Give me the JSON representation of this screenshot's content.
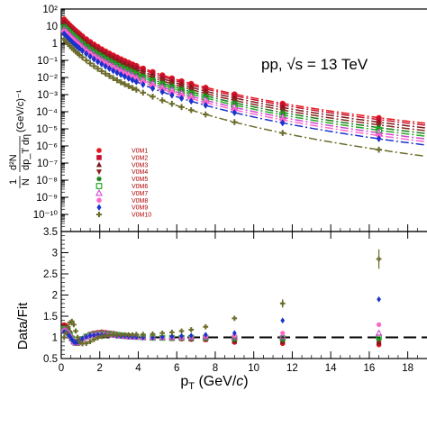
{
  "chart_data": [
    {
      "panel": "spectrum",
      "type": "scatter",
      "title": "pp, √s = 13 TeV",
      "ylabel": "1/N d²N/dp_T dη (GeV/c)⁻¹",
      "ylabel_parts": {
        "frac_num_top": "1",
        "frac_den_top": "N",
        "frac_num": "d²N",
        "frac_den": "dp_T dη",
        "unit": "(GeV/c)⁻¹"
      },
      "yscale": "log",
      "ylim": [
        1e-11,
        100
      ],
      "xlim": [
        0,
        19
      ],
      "ytick_labels": [
        "10²",
        "10",
        "1",
        "10⁻¹",
        "10⁻²",
        "10⁻³",
        "10⁻⁴",
        "10⁻⁵",
        "10⁻⁶",
        "10⁻⁷",
        "10⁻⁸",
        "10⁻⁹",
        "10⁻¹⁰"
      ],
      "ytick_values": [
        100,
        10,
        1,
        0.1,
        0.01,
        0.001,
        0.0001,
        1e-05,
        1e-06,
        1e-07,
        1e-08,
        1e-09,
        1e-10
      ],
      "legend_position": "lower-left",
      "x": [
        0.15,
        0.25,
        0.35,
        0.45,
        0.55,
        0.65,
        0.75,
        0.85,
        0.95,
        1.1,
        1.3,
        1.5,
        1.7,
        1.9,
        2.1,
        2.3,
        2.5,
        2.7,
        2.9,
        3.1,
        3.3,
        3.5,
        3.7,
        3.9,
        4.25,
        4.75,
        5.25,
        5.75,
        6.25,
        6.75,
        7.5,
        9.0,
        11.5,
        16.5
      ],
      "series": [
        {
          "name": "V0M1",
          "color": "#e8171b",
          "marker": "circle",
          "A": 40,
          "B": 0.32,
          "n": 6.1,
          "fit": "dashdot"
        },
        {
          "name": "V0M2",
          "color": "#c8102e",
          "marker": "square",
          "A": 30,
          "B": 0.33,
          "n": 6.2,
          "fit": "dashdot"
        },
        {
          "name": "V0M3",
          "color": "#7a1a1a",
          "marker": "triangle-up",
          "A": 24,
          "B": 0.33,
          "n": 6.3,
          "fit": "dashdot"
        },
        {
          "name": "V0M4",
          "color": "#8b2520",
          "marker": "triangle-down",
          "A": 19,
          "B": 0.33,
          "n": 6.4,
          "fit": "dashdot"
        },
        {
          "name": "V0M5",
          "color": "#1a7a1a",
          "marker": "star",
          "A": 15,
          "B": 0.33,
          "n": 6.5,
          "fit": "dashdot"
        },
        {
          "name": "V0M6",
          "color": "#22aa22",
          "marker": "square-open",
          "A": 12,
          "B": 0.33,
          "n": 6.6,
          "fit": "dashdot"
        },
        {
          "name": "V0M7",
          "color": "#d147d1",
          "marker": "triangle-open",
          "A": 9.5,
          "B": 0.33,
          "n": 6.7,
          "fit": "dashdot"
        },
        {
          "name": "V0M8",
          "color": "#ff66cc",
          "marker": "circle",
          "A": 7.5,
          "B": 0.33,
          "n": 6.8,
          "fit": "dashdot"
        },
        {
          "name": "V0M9",
          "color": "#1a33cc",
          "marker": "diamond",
          "A": 5.5,
          "B": 0.33,
          "n": 6.9,
          "fit": "dashdot"
        },
        {
          "name": "V0M10",
          "color": "#6b6b2a",
          "marker": "cross",
          "A": 2.5,
          "B": 0.32,
          "n": 7.3,
          "fit": "dashdot"
        }
      ]
    },
    {
      "panel": "ratio",
      "type": "scatter",
      "xlabel": "p_T (GeV/c)",
      "xlabel_parts": {
        "main": "p",
        "sub": "T",
        "unit_open": " (GeV/",
        "unit_c": "c",
        "unit_close": ")"
      },
      "ylabel": "Data/Fit",
      "ylim": [
        0.5,
        3.5
      ],
      "xlim": [
        0,
        19
      ],
      "ytick_labels": [
        "0.5",
        "1",
        "1.5",
        "2",
        "2.5",
        "3",
        "3.5"
      ],
      "ytick_values": [
        0.5,
        1,
        1.5,
        2,
        2.5,
        3,
        3.5
      ],
      "xtick_labels": [
        "0",
        "2",
        "4",
        "6",
        "8",
        "10",
        "12",
        "14",
        "16",
        "18"
      ],
      "xtick_values": [
        0,
        2,
        4,
        6,
        8,
        10,
        12,
        14,
        16,
        18
      ],
      "reference_line": 1,
      "x": [
        0.15,
        0.25,
        0.35,
        0.45,
        0.55,
        0.65,
        0.75,
        0.85,
        0.95,
        1.1,
        1.3,
        1.5,
        1.7,
        1.9,
        2.1,
        2.3,
        2.5,
        2.7,
        2.9,
        3.1,
        3.3,
        3.5,
        3.7,
        3.9,
        4.25,
        4.75,
        5.25,
        5.75,
        6.25,
        6.75,
        7.5,
        9.0,
        11.5,
        16.5
      ],
      "series": [
        {
          "name": "V0M1",
          "values": [
            1.3,
            1.28,
            1.22,
            1.12,
            1.0,
            0.9,
            0.86,
            0.85,
            0.88,
            0.94,
            1.02,
            1.08,
            1.1,
            1.12,
            1.13,
            1.12,
            1.11,
            1.1,
            1.08,
            1.06,
            1.05,
            1.04,
            1.03,
            1.02,
            1.0,
            0.99,
            0.98,
            0.97,
            0.96,
            0.95,
            0.94,
            0.88,
            0.85,
            0.82
          ]
        },
        {
          "name": "V0M2",
          "values": [
            1.28,
            1.26,
            1.2,
            1.1,
            0.99,
            0.9,
            0.86,
            0.86,
            0.89,
            0.95,
            1.02,
            1.07,
            1.1,
            1.11,
            1.12,
            1.11,
            1.1,
            1.09,
            1.07,
            1.06,
            1.05,
            1.04,
            1.03,
            1.02,
            1.0,
            0.99,
            0.98,
            0.97,
            0.97,
            0.96,
            0.95,
            0.9,
            0.88,
            0.86
          ]
        },
        {
          "name": "V0M3",
          "values": [
            1.26,
            1.24,
            1.18,
            1.09,
            0.98,
            0.9,
            0.86,
            0.86,
            0.89,
            0.95,
            1.02,
            1.07,
            1.09,
            1.1,
            1.11,
            1.1,
            1.09,
            1.08,
            1.07,
            1.05,
            1.04,
            1.03,
            1.02,
            1.02,
            1.0,
            0.99,
            0.98,
            0.97,
            0.97,
            0.96,
            0.96,
            0.92,
            0.9,
            0.88
          ]
        },
        {
          "name": "V0M4",
          "values": [
            1.24,
            1.22,
            1.17,
            1.08,
            0.98,
            0.9,
            0.86,
            0.86,
            0.9,
            0.95,
            1.02,
            1.06,
            1.08,
            1.1,
            1.1,
            1.1,
            1.09,
            1.08,
            1.06,
            1.05,
            1.04,
            1.03,
            1.02,
            1.01,
            1.0,
            0.99,
            0.98,
            0.98,
            0.97,
            0.97,
            0.97,
            0.94,
            0.92,
            0.92
          ]
        },
        {
          "name": "V0M5",
          "values": [
            1.22,
            1.2,
            1.15,
            1.07,
            0.97,
            0.9,
            0.86,
            0.87,
            0.9,
            0.96,
            1.02,
            1.06,
            1.08,
            1.09,
            1.09,
            1.09,
            1.08,
            1.07,
            1.06,
            1.05,
            1.04,
            1.03,
            1.02,
            1.01,
            1.0,
            0.99,
            0.99,
            0.98,
            0.98,
            0.98,
            0.98,
            0.96,
            0.95,
            0.96
          ]
        },
        {
          "name": "V0M6",
          "values": [
            1.2,
            1.18,
            1.14,
            1.06,
            0.97,
            0.9,
            0.87,
            0.87,
            0.9,
            0.96,
            1.02,
            1.05,
            1.07,
            1.08,
            1.09,
            1.08,
            1.08,
            1.07,
            1.06,
            1.04,
            1.03,
            1.02,
            1.02,
            1.01,
            1.0,
            0.99,
            0.99,
            0.99,
            0.99,
            0.99,
            0.99,
            0.98,
            0.98,
            1.0
          ]
        },
        {
          "name": "V0M7",
          "values": [
            1.18,
            1.16,
            1.12,
            1.05,
            0.97,
            0.9,
            0.87,
            0.88,
            0.91,
            0.96,
            1.01,
            1.05,
            1.07,
            1.08,
            1.08,
            1.08,
            1.07,
            1.06,
            1.05,
            1.04,
            1.03,
            1.02,
            1.01,
            1.01,
            1.0,
            1.0,
            1.0,
            1.0,
            1.0,
            1.0,
            1.01,
            1.01,
            1.02,
            1.1
          ]
        },
        {
          "name": "V0M8",
          "values": [
            1.16,
            1.14,
            1.1,
            1.04,
            0.96,
            0.9,
            0.88,
            0.88,
            0.91,
            0.96,
            1.01,
            1.04,
            1.06,
            1.07,
            1.07,
            1.07,
            1.06,
            1.06,
            1.05,
            1.04,
            1.03,
            1.02,
            1.01,
            1.01,
            1.0,
            1.0,
            1.0,
            1.01,
            1.01,
            1.02,
            1.03,
            1.04,
            1.1,
            1.3
          ]
        },
        {
          "name": "V0M9",
          "values": [
            1.13,
            1.12,
            1.08,
            1.02,
            0.95,
            0.9,
            0.88,
            0.89,
            0.92,
            0.97,
            1.01,
            1.04,
            1.05,
            1.06,
            1.06,
            1.06,
            1.05,
            1.05,
            1.04,
            1.03,
            1.03,
            1.02,
            1.01,
            1.01,
            1.0,
            1.0,
            1.01,
            1.02,
            1.03,
            1.04,
            1.06,
            1.1,
            1.4,
            1.9
          ]
        },
        {
          "name": "V0M10",
          "values": [
            1.0,
            1.1,
            1.25,
            1.35,
            1.38,
            1.3,
            1.15,
            1.0,
            0.9,
            0.85,
            0.86,
            0.9,
            0.95,
            0.99,
            1.02,
            1.04,
            1.05,
            1.06,
            1.06,
            1.06,
            1.06,
            1.06,
            1.06,
            1.07,
            1.07,
            1.08,
            1.1,
            1.12,
            1.15,
            1.18,
            1.25,
            1.45,
            1.8,
            2.85
          ]
        }
      ],
      "v0m10_errors": {
        "7.5": 0.06,
        "9.0": 0.09,
        "11.5": 0.1,
        "16.5": 0.23
      }
    }
  ]
}
